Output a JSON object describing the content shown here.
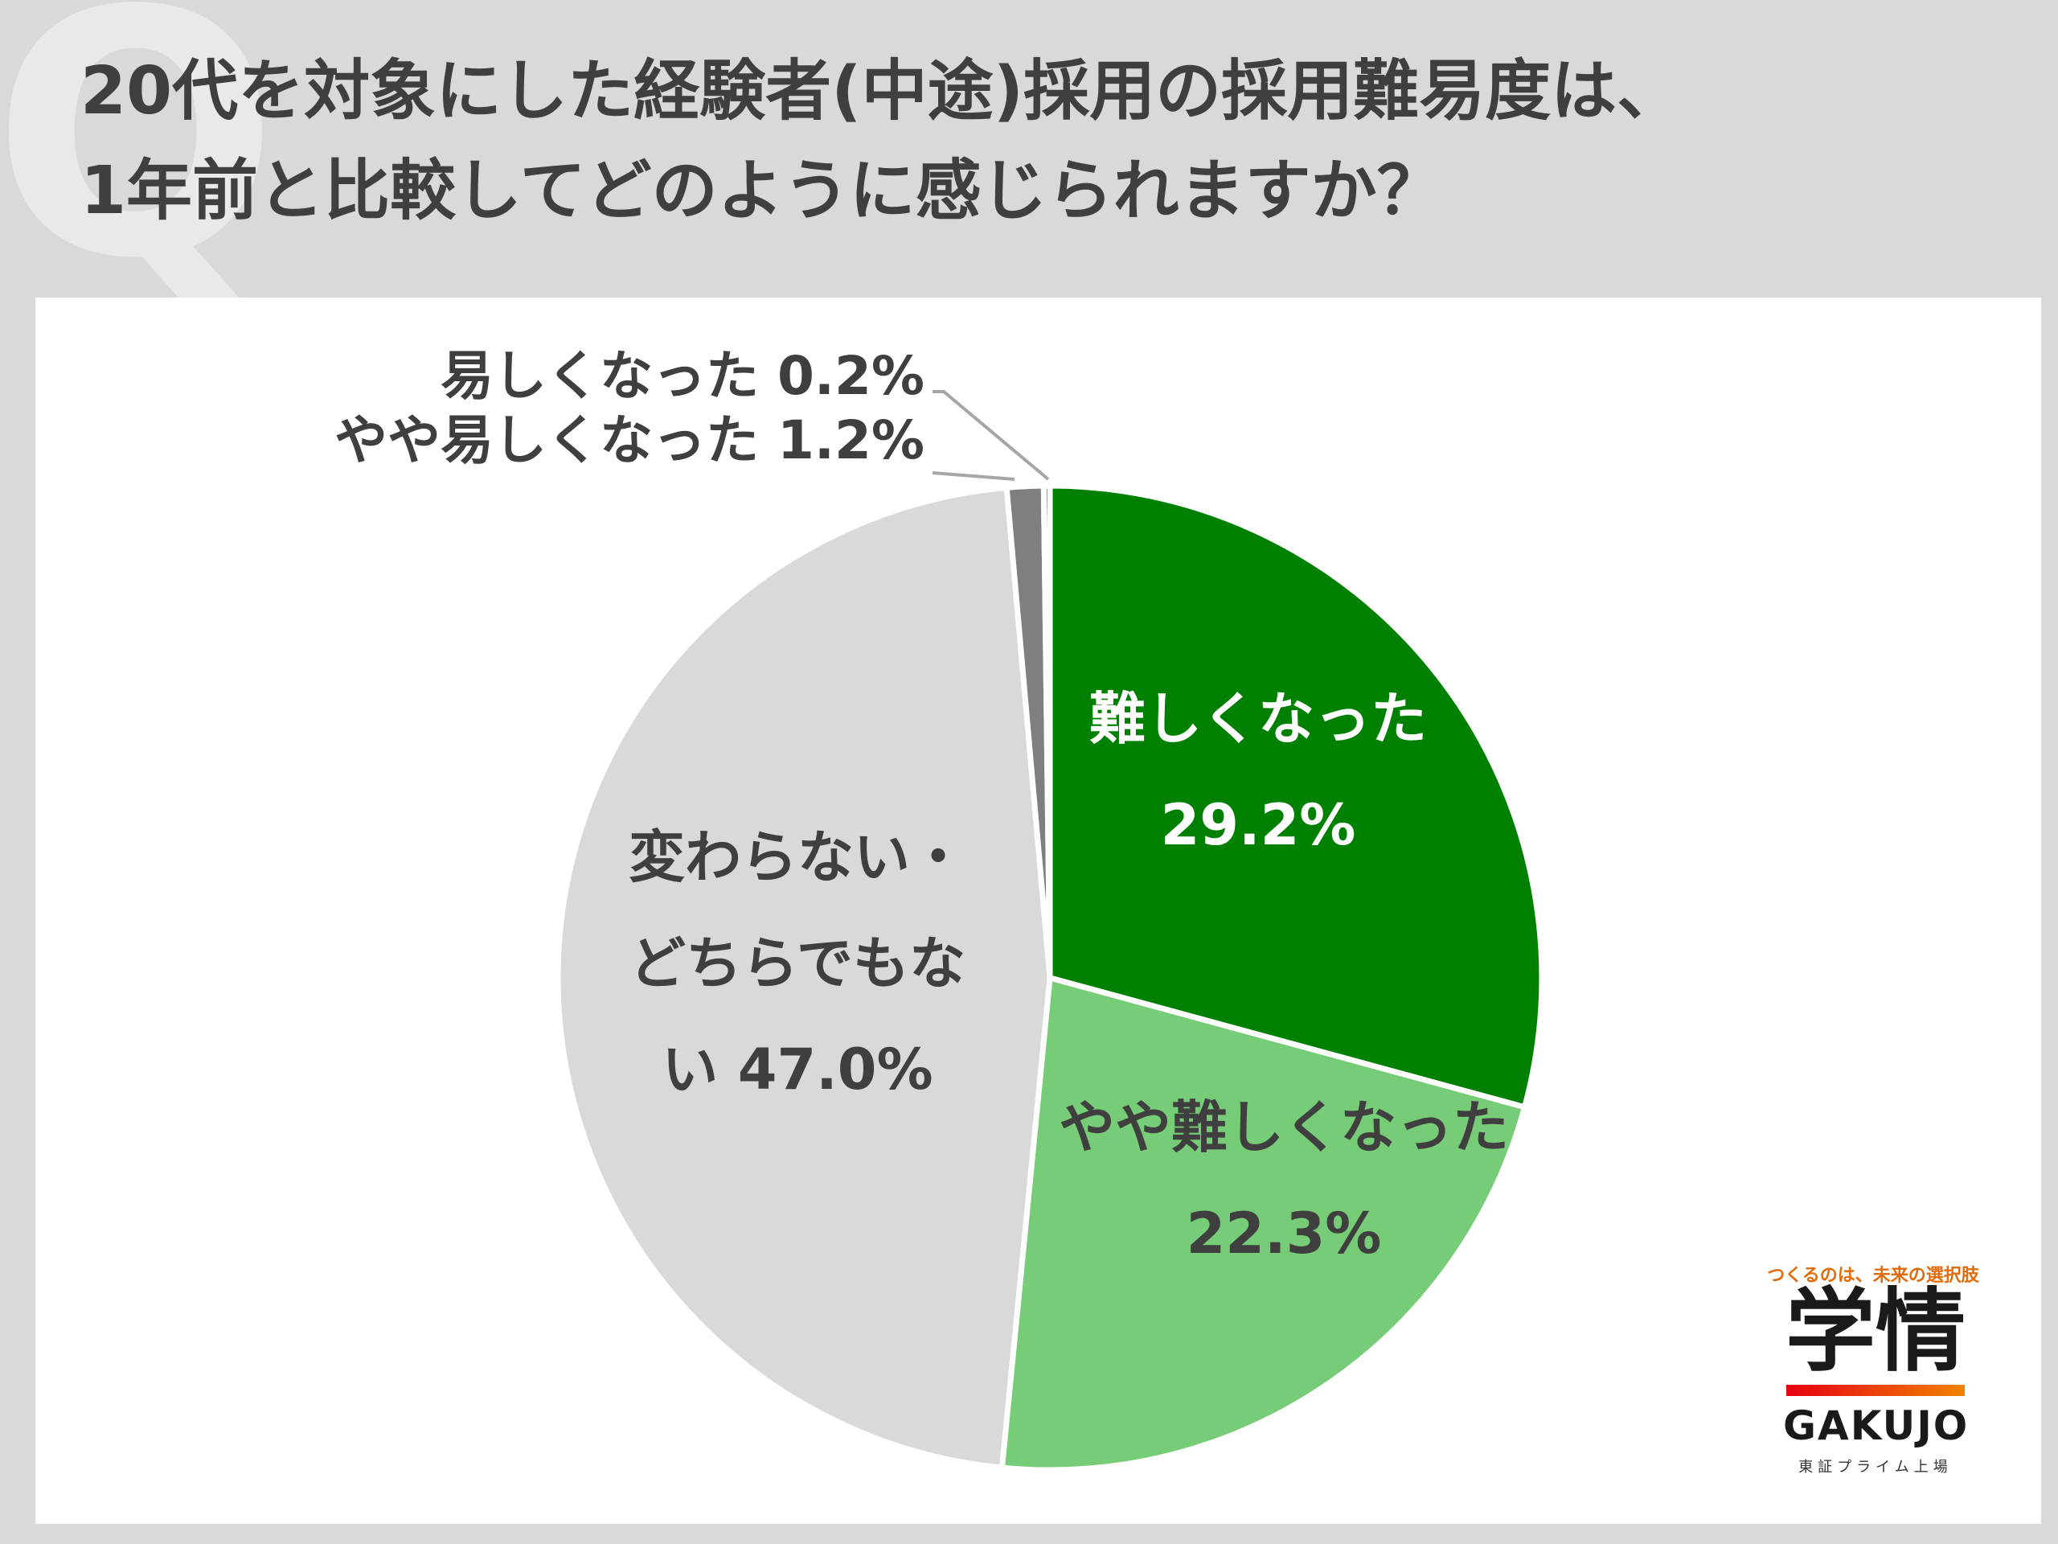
{
  "title_lines": [
    "20代を対象にした経験者(中途)採用の採用難易度は、",
    "1年前と比較してどのように感じられますか？"
  ],
  "watermark": "Q",
  "chart_data": {
    "type": "pie",
    "start": "12 o'clock",
    "direction": "clockwise",
    "slices": [
      {
        "label": "難しくなった",
        "value": 29.2,
        "value_text": "29.2%",
        "color": "#008000"
      },
      {
        "label": "やや難しくなった",
        "value": 22.3,
        "value_text": "22.3%",
        "color": "#77cc77"
      },
      {
        "label": "変わらない・どちらでもない",
        "value": 47.0,
        "value_text": "47.0%",
        "color": "#d9d9d9"
      },
      {
        "label": "やや易しくなった",
        "value": 1.2,
        "value_text": "1.2%",
        "color": "#7f7f7f"
      },
      {
        "label": "易しくなった",
        "value": 0.2,
        "value_text": "0.2%",
        "color": "#404040"
      }
    ],
    "label_lines": [
      [
        "難しくなった",
        "29.2%"
      ],
      [
        "やや難しくなった",
        "22.3%"
      ],
      [
        "変わらない・",
        "どちらでもな",
        "い 47.0%"
      ],
      [
        "やや易しくなった 1.2%"
      ],
      [
        "易しくなった 0.2%"
      ]
    ]
  },
  "logo": {
    "tagline": "つくるのは、未来の選択肢",
    "kanji": "学情",
    "name": "GAKUJO",
    "subtitle": "東証プライム上場"
  }
}
